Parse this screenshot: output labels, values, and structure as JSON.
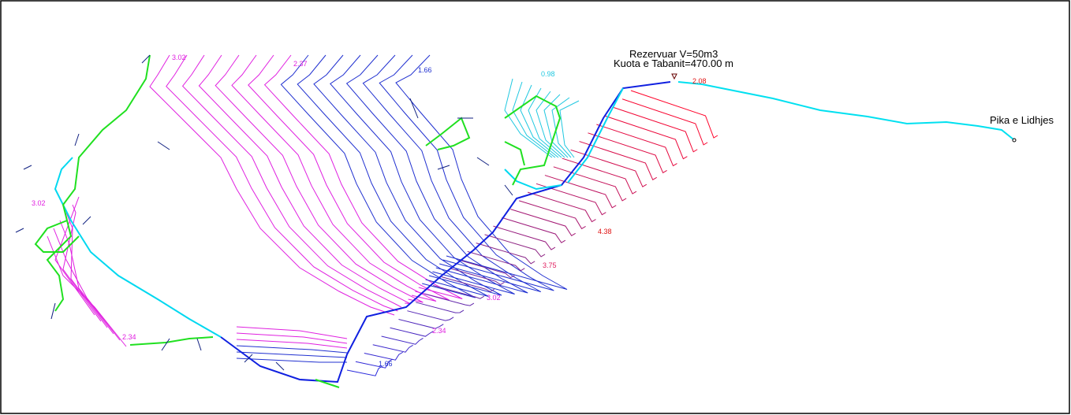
{
  "reservoir": {
    "name": "Rezervuar V=50m3",
    "elevation": "Kuota e Tabanit=470.00 m"
  },
  "connection_point": "Pika e Lidhjes",
  "contour_labels": [
    "3.02",
    "2.37",
    "1.66",
    "0.98",
    "3.02",
    "2.34",
    "1.66",
    "2.34",
    "3.02",
    "3.75",
    "4.38",
    "2.08"
  ]
}
